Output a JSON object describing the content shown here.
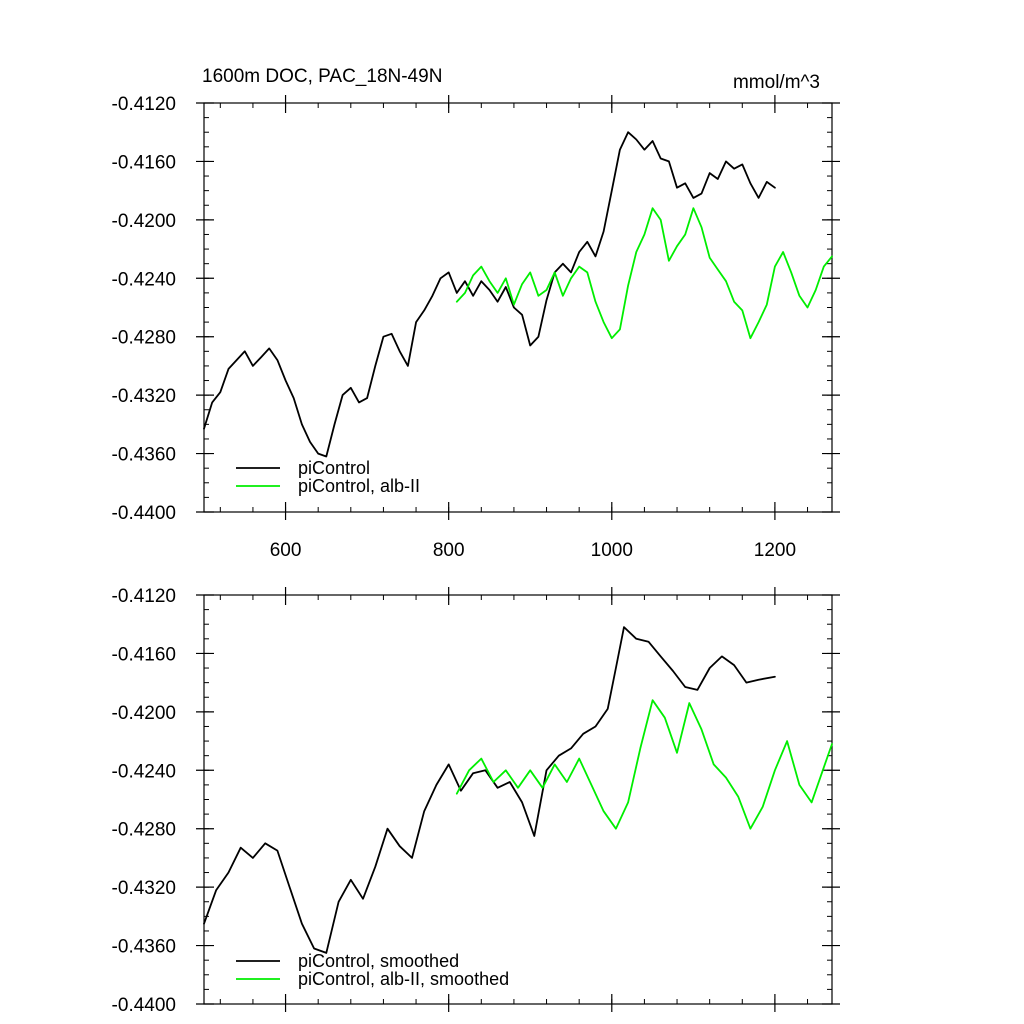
{
  "title": "1600m DOC, PAC_18N-49N",
  "units": "mmol/m^3",
  "colors": {
    "piControl": "#000000",
    "alb_II": "#00ee00"
  },
  "chart_data": [
    {
      "type": "line",
      "xlim": [
        500,
        1270
      ],
      "ylim": [
        -0.44,
        -0.412
      ],
      "x_ticks": [
        600,
        800,
        1000,
        1200
      ],
      "x_tick_labels": [
        "600",
        "800",
        "1000",
        "1200"
      ],
      "y_ticks": [
        -0.412,
        -0.416,
        -0.42,
        -0.424,
        -0.428,
        -0.432,
        -0.436,
        -0.44
      ],
      "y_tick_labels": [
        "-0.4120",
        "-0.4160",
        "-0.4200",
        "-0.4240",
        "-0.4280",
        "-0.4320",
        "-0.4360",
        "-0.4400"
      ],
      "legend": [
        "piControl",
        "piControl, alb-II"
      ],
      "legend_position": "bottom-left",
      "series": [
        {
          "name": "piControl",
          "color": "#000000",
          "x": [
            500,
            510,
            520,
            530,
            540,
            550,
            560,
            570,
            580,
            590,
            600,
            610,
            620,
            630,
            640,
            650,
            660,
            670,
            680,
            690,
            700,
            710,
            720,
            730,
            740,
            750,
            760,
            770,
            780,
            790,
            800,
            810,
            820,
            830,
            840,
            850,
            860,
            870,
            880,
            890,
            900,
            910,
            920,
            930,
            940,
            950,
            960,
            970,
            980,
            990,
            1000,
            1010,
            1020,
            1030,
            1040,
            1050,
            1060,
            1070,
            1080,
            1090,
            1100,
            1110,
            1120,
            1130,
            1140,
            1150,
            1160,
            1170,
            1180,
            1190,
            1200
          ],
          "y": [
            -0.4343,
            -0.4325,
            -0.4318,
            -0.4302,
            -0.4296,
            -0.429,
            -0.43,
            -0.4294,
            -0.4288,
            -0.4296,
            -0.431,
            -0.4322,
            -0.434,
            -0.4352,
            -0.436,
            -0.4362,
            -0.434,
            -0.432,
            -0.4315,
            -0.4325,
            -0.4322,
            -0.43,
            -0.428,
            -0.4278,
            -0.429,
            -0.43,
            -0.427,
            -0.4262,
            -0.4252,
            -0.424,
            -0.4236,
            -0.425,
            -0.4242,
            -0.4252,
            -0.4242,
            -0.4248,
            -0.4256,
            -0.4246,
            -0.426,
            -0.4265,
            -0.4286,
            -0.428,
            -0.4255,
            -0.4236,
            -0.423,
            -0.4236,
            -0.4222,
            -0.4215,
            -0.4225,
            -0.4208,
            -0.418,
            -0.4152,
            -0.414,
            -0.4145,
            -0.4152,
            -0.4146,
            -0.4158,
            -0.416,
            -0.4178,
            -0.4175,
            -0.4185,
            -0.4182,
            -0.4168,
            -0.4172,
            -0.416,
            -0.4165,
            -0.4162,
            -0.4175,
            -0.4185,
            -0.4174,
            -0.4178
          ]
        },
        {
          "name": "piControl, alb-II",
          "color": "#00ee00",
          "x": [
            810,
            820,
            830,
            840,
            850,
            860,
            870,
            880,
            890,
            900,
            910,
            920,
            930,
            940,
            950,
            960,
            970,
            980,
            990,
            1000,
            1010,
            1020,
            1030,
            1040,
            1050,
            1060,
            1070,
            1080,
            1090,
            1100,
            1110,
            1120,
            1130,
            1140,
            1150,
            1160,
            1170,
            1180,
            1190,
            1200,
            1210,
            1220,
            1230,
            1240,
            1250,
            1260,
            1270
          ],
          "y": [
            -0.4256,
            -0.425,
            -0.4238,
            -0.4232,
            -0.4242,
            -0.425,
            -0.424,
            -0.4258,
            -0.4244,
            -0.4236,
            -0.4252,
            -0.4248,
            -0.4236,
            -0.4252,
            -0.424,
            -0.4232,
            -0.4236,
            -0.4256,
            -0.427,
            -0.4281,
            -0.4275,
            -0.4245,
            -0.4222,
            -0.421,
            -0.4192,
            -0.42,
            -0.4228,
            -0.4218,
            -0.421,
            -0.4192,
            -0.4205,
            -0.4226,
            -0.4234,
            -0.4242,
            -0.4256,
            -0.4262,
            -0.4281,
            -0.427,
            -0.4258,
            -0.4232,
            -0.4222,
            -0.4236,
            -0.4252,
            -0.426,
            -0.4248,
            -0.4232,
            -0.4225
          ]
        }
      ]
    },
    {
      "type": "line",
      "xlim": [
        500,
        1270
      ],
      "ylim": [
        -0.44,
        -0.412
      ],
      "x_ticks": [
        600,
        800,
        1000,
        1200
      ],
      "y_ticks": [
        -0.412,
        -0.416,
        -0.42,
        -0.424,
        -0.428,
        -0.432,
        -0.436,
        -0.44
      ],
      "y_tick_labels": [
        "-0.4120",
        "-0.4160",
        "-0.4200",
        "-0.4240",
        "-0.4280",
        "-0.4320",
        "-0.4360",
        "-0.4400"
      ],
      "legend": [
        "piControl, smoothed",
        "piControl, alb-II, smoothed"
      ],
      "legend_position": "bottom-left",
      "series": [
        {
          "name": "piControl, smoothed",
          "color": "#000000",
          "x": [
            500,
            515,
            530,
            545,
            560,
            575,
            590,
            605,
            620,
            635,
            650,
            665,
            680,
            695,
            710,
            725,
            740,
            755,
            770,
            785,
            800,
            815,
            830,
            845,
            860,
            875,
            890,
            905,
            920,
            935,
            950,
            965,
            980,
            995,
            1005,
            1015,
            1030,
            1045,
            1060,
            1075,
            1090,
            1105,
            1120,
            1135,
            1150,
            1165,
            1180,
            1200
          ],
          "y": [
            -0.4345,
            -0.4322,
            -0.431,
            -0.4293,
            -0.43,
            -0.429,
            -0.4295,
            -0.432,
            -0.4345,
            -0.4362,
            -0.4365,
            -0.433,
            -0.4315,
            -0.4328,
            -0.4306,
            -0.428,
            -0.4292,
            -0.43,
            -0.4268,
            -0.425,
            -0.4236,
            -0.4254,
            -0.4242,
            -0.424,
            -0.4252,
            -0.4248,
            -0.4262,
            -0.4285,
            -0.424,
            -0.423,
            -0.4225,
            -0.4215,
            -0.421,
            -0.4198,
            -0.417,
            -0.4142,
            -0.415,
            -0.4152,
            -0.4162,
            -0.4172,
            -0.4183,
            -0.4185,
            -0.417,
            -0.4162,
            -0.4168,
            -0.418,
            -0.4178,
            -0.4176
          ]
        },
        {
          "name": "piControl, alb-II, smoothed",
          "color": "#00ee00",
          "x": [
            810,
            825,
            840,
            855,
            870,
            885,
            900,
            915,
            930,
            945,
            960,
            975,
            990,
            1005,
            1020,
            1035,
            1050,
            1065,
            1080,
            1095,
            1110,
            1125,
            1140,
            1155,
            1170,
            1185,
            1200,
            1215,
            1230,
            1245,
            1260,
            1270
          ],
          "y": [
            -0.4256,
            -0.424,
            -0.4232,
            -0.4248,
            -0.424,
            -0.4252,
            -0.424,
            -0.4252,
            -0.4236,
            -0.4248,
            -0.4232,
            -0.425,
            -0.4268,
            -0.428,
            -0.4262,
            -0.4225,
            -0.4192,
            -0.4204,
            -0.4228,
            -0.4194,
            -0.4212,
            -0.4236,
            -0.4245,
            -0.4258,
            -0.428,
            -0.4265,
            -0.424,
            -0.422,
            -0.425,
            -0.4262,
            -0.4238,
            -0.4222
          ]
        }
      ]
    }
  ]
}
